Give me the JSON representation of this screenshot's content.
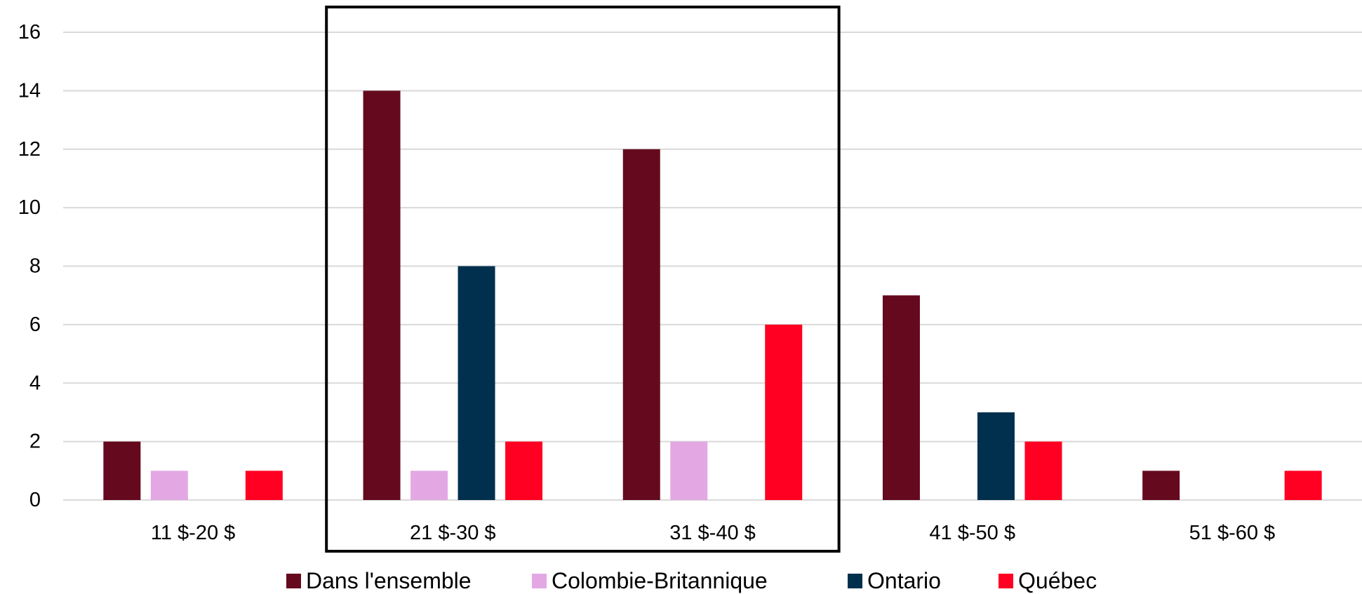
{
  "chart_data": {
    "type": "bar",
    "title": "",
    "xlabel": "",
    "ylabel": "",
    "categories": [
      "11 $-20 $",
      "21 $-30 $",
      "31 $-40 $",
      "41 $-50 $",
      "51 $-60 $"
    ],
    "series": [
      {
        "name": "Dans l'ensemble",
        "color": "#650A1E",
        "values": [
          2,
          14,
          12,
          7,
          1
        ]
      },
      {
        "name": "Colombie-Britannique",
        "color": "#E3A8E4",
        "values": [
          1,
          1,
          2,
          0,
          0
        ]
      },
      {
        "name": "Ontario",
        "color": "#00304D",
        "values": [
          0,
          8,
          0,
          3,
          0
        ]
      },
      {
        "name": "Québec",
        "color": "#FF0022",
        "values": [
          1,
          2,
          6,
          2,
          1
        ]
      }
    ],
    "ylim": [
      0,
      16
    ],
    "yticks": [
      0,
      2,
      4,
      6,
      8,
      10,
      12,
      14,
      16
    ],
    "grid": true,
    "legend": "bottom",
    "highlight_categories": [
      "21 $-30 $",
      "31 $-40 $"
    ]
  }
}
